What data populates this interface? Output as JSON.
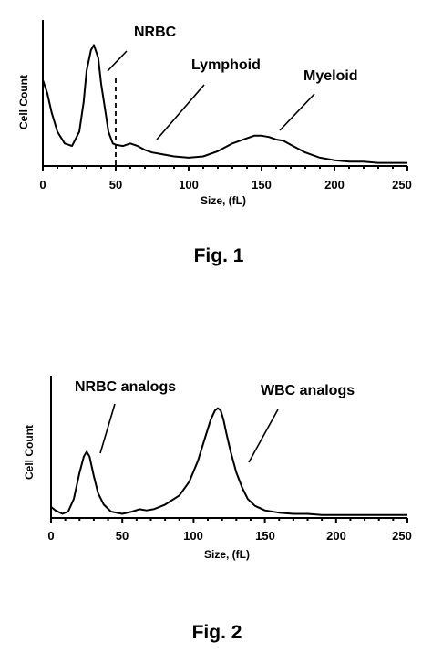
{
  "chart_data": [
    {
      "type": "line",
      "figure_caption": "Fig. 1",
      "xlabel": "Size, (fL)",
      "ylabel": "Cell Count",
      "xlim": [
        0,
        250
      ],
      "xticks": [
        "0",
        "50",
        "100",
        "150",
        "200",
        "250"
      ],
      "grid": false,
      "annotations": [
        "NRBC",
        "Lymphoid",
        "Myeloid"
      ],
      "threshold_x": 50,
      "series": [
        {
          "x": [
            0,
            3,
            6,
            10,
            15,
            20,
            25,
            28,
            30,
            33,
            35,
            38,
            40,
            43,
            45,
            48,
            50,
            55,
            60,
            65,
            70,
            75,
            80,
            90,
            100,
            110,
            120,
            130,
            140,
            145,
            150,
            155,
            160,
            165,
            170,
            180,
            190,
            200,
            210,
            220,
            230,
            240,
            250
          ],
          "y": [
            65,
            55,
            40,
            25,
            16,
            14,
            25,
            48,
            72,
            88,
            92,
            82,
            62,
            40,
            25,
            16,
            15,
            14,
            16,
            14,
            11,
            9,
            8,
            6,
            5,
            6,
            10,
            16,
            20,
            22,
            22,
            21,
            19,
            18,
            15,
            9,
            5,
            3,
            2,
            2,
            1,
            1,
            1
          ]
        }
      ]
    },
    {
      "type": "line",
      "figure_caption": "Fig. 2",
      "xlabel": "Size, (fL)",
      "ylabel": "Cell Count",
      "xlim": [
        0,
        250
      ],
      "xticks": [
        "0",
        "50",
        "100",
        "150",
        "200",
        "250"
      ],
      "grid": false,
      "annotations": [
        "NRBC analogs",
        "WBC analogs"
      ],
      "series": [
        {
          "x": [
            0,
            3,
            8,
            12,
            16,
            20,
            23,
            25,
            27,
            30,
            33,
            37,
            42,
            50,
            57,
            62,
            67,
            72,
            80,
            90,
            97,
            103,
            108,
            112,
            115,
            117,
            119,
            121,
            123,
            126,
            130,
            134,
            138,
            143,
            150,
            160,
            170,
            180,
            190,
            200,
            210,
            220,
            230,
            240,
            250
          ],
          "y": [
            8,
            5,
            2,
            4,
            15,
            38,
            52,
            56,
            52,
            35,
            20,
            10,
            4,
            2,
            4,
            6,
            5,
            6,
            10,
            18,
            30,
            48,
            68,
            84,
            92,
            94,
            92,
            84,
            72,
            56,
            38,
            25,
            15,
            9,
            5,
            3,
            2,
            2,
            1,
            1,
            1,
            1,
            1,
            1,
            1
          ]
        }
      ]
    }
  ]
}
